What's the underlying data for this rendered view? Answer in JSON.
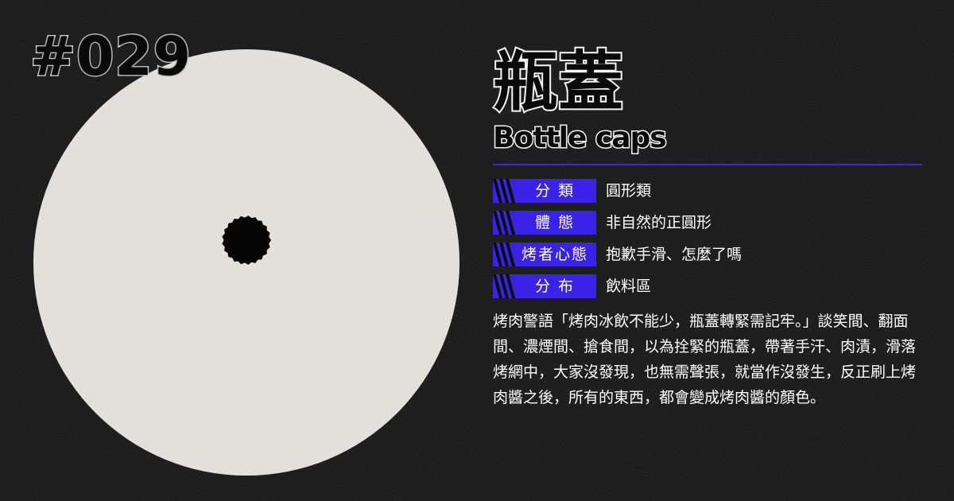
{
  "badge": {
    "number": "#029"
  },
  "title": {
    "zh": "瓶蓋",
    "en": "Bottle caps"
  },
  "attributes": [
    {
      "label": "分 類",
      "value": "圓形類"
    },
    {
      "label": "體 態",
      "value": "非自然的正圓形"
    },
    {
      "label": "烤者心態",
      "value": "抱歉手滑、怎麼了嗎"
    },
    {
      "label": "分 布",
      "value": "飲料區"
    }
  ],
  "description": "烤肉警語「烤肉冰飲不能少，瓶蓋轉緊需記牢。」談笑間、翻面間、濃煙間、搶食間，以為拴緊的瓶蓋，帶著手汗、肉漬，滑落烤網中，大家沒發現，也無需聲張，就當作沒發生，反正刷上烤肉醬之後，所有的東西，都會變成烤肉醬的顏色。",
  "colors": {
    "background": "#0b0b0b",
    "accent": "#3a23e6",
    "disc": "#efece6",
    "text": "#ffffff"
  },
  "icons": {
    "stripes": "diagonal-stripes-icon",
    "cap": "bottle-cap-icon"
  }
}
